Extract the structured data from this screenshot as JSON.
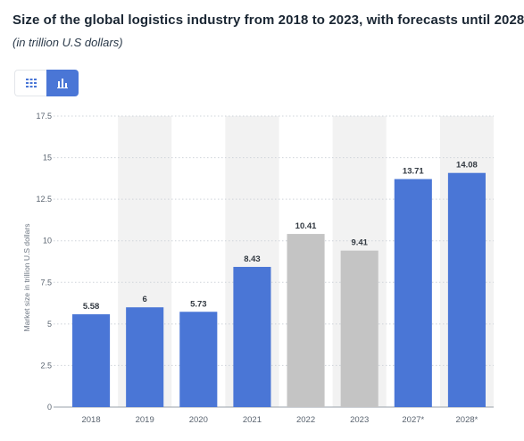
{
  "header": {
    "title": "Size of the global logistics industry from 2018 to 2023, with forecasts until 2028",
    "subtitle": "(in trillion U.S dollars)"
  },
  "toolbar": {
    "table_view_icon": "table-grid-icon",
    "chart_view_icon": "bar-chart-icon",
    "active_view": "chart"
  },
  "colors": {
    "primary_bar": "#4a76d6",
    "secondary_bar": "#c4c4c4",
    "band": "#f2f2f2",
    "grid": "#cfd4da",
    "axis_text": "#5a6470",
    "label_text": "#333a42"
  },
  "chart_data": {
    "type": "bar",
    "title": "Size of the global logistics industry from 2018 to 2023, with forecasts until 2028",
    "subtitle": "(in trillion U.S dollars)",
    "xlabel": "",
    "ylabel": "Market size in trillion U.S dollars",
    "ylim": [
      0,
      17.5
    ],
    "yticks": [
      "0",
      "2.5",
      "5",
      "7.5",
      "10",
      "12.5",
      "15",
      "17.5"
    ],
    "categories": [
      "2018",
      "2019",
      "2020",
      "2021",
      "2022",
      "2023",
      "2027*",
      "2028*"
    ],
    "values": [
      5.58,
      6,
      5.73,
      8.43,
      10.41,
      9.41,
      13.71,
      14.08
    ],
    "value_labels": [
      "5.58",
      "6",
      "5.73",
      "8.43",
      "10.41",
      "9.41",
      "13.71",
      "14.08"
    ],
    "highlight": [
      "primary",
      "primary",
      "primary",
      "primary",
      "secondary",
      "secondary",
      "primary",
      "primary"
    ],
    "grid": true,
    "legend": "none",
    "data_labels": true
  }
}
